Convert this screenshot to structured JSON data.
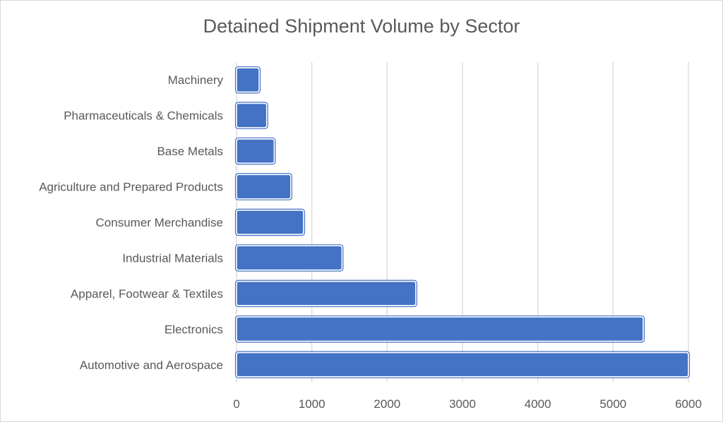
{
  "chart_data": {
    "type": "bar",
    "orientation": "horizontal",
    "title": "Detained Shipment Volume by Sector",
    "xlabel": "",
    "ylabel": "",
    "categories": [
      "Automotive and Aerospace",
      "Electronics",
      "Apparel, Footwear & Textiles",
      "Industrial Materials",
      "Consumer Merchandise",
      "Agriculture and Prepared Products",
      "Base Metals",
      "Pharmaceuticals & Chemicals",
      "Machinery"
    ],
    "values": [
      6000,
      5400,
      2380,
      1400,
      890,
      720,
      500,
      400,
      300
    ],
    "xlim": [
      0,
      6000
    ],
    "xticks": [
      "0",
      "1000",
      "2000",
      "3000",
      "4000",
      "5000",
      "6000"
    ],
    "grid": "vertical",
    "legend": "none",
    "bar_color": "#4472c4"
  }
}
